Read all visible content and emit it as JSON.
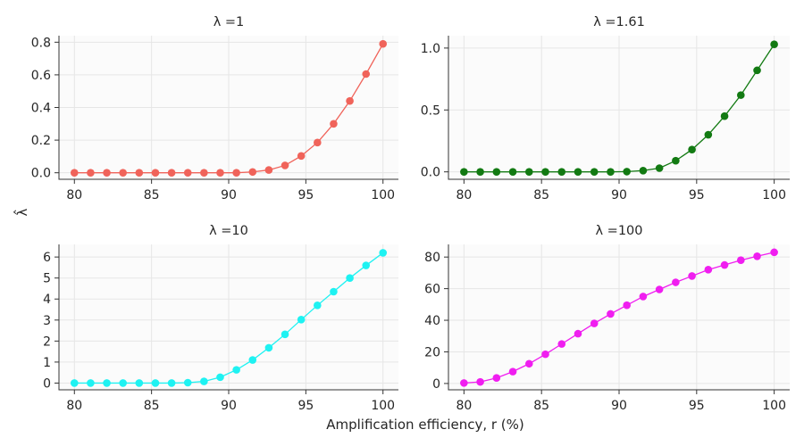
{
  "figure": {
    "xlabel": "Amplification efficiency, r (%)",
    "ylabel": "λ̂"
  },
  "chart_data": [
    {
      "type": "line",
      "title": "λ =1",
      "color": "#f0635a",
      "xlim": [
        79,
        101
      ],
      "ylim": [
        -0.04,
        0.84
      ],
      "xticks": [
        80,
        85,
        90,
        95,
        100
      ],
      "yticks": [
        0.0,
        0.2,
        0.4,
        0.6,
        0.8
      ],
      "ytick_labels": [
        "0.0",
        "0.2",
        "0.4",
        "0.6",
        "0.8"
      ],
      "x": [
        80,
        81.05,
        82.1,
        83.15,
        84.2,
        85.25,
        86.3,
        87.35,
        88.4,
        89.45,
        90.5,
        91.55,
        92.6,
        93.65,
        94.7,
        95.75,
        96.8,
        97.85,
        98.9,
        100
      ],
      "y": [
        0.0,
        0.0,
        0.0,
        0.0,
        0.0,
        0.0,
        0.0,
        0.0,
        0.0,
        0.0,
        0.0,
        0.005,
        0.017,
        0.045,
        0.103,
        0.185,
        0.3,
        0.44,
        0.605,
        0.79
      ]
    },
    {
      "type": "line",
      "title": "λ =1.61",
      "color": "#127a12",
      "xlim": [
        79,
        101
      ],
      "ylim": [
        -0.06,
        1.1
      ],
      "xticks": [
        80,
        85,
        90,
        95,
        100
      ],
      "yticks": [
        0.0,
        0.5,
        1.0
      ],
      "ytick_labels": [
        "0.0",
        "0.5",
        "1.0"
      ],
      "x": [
        80,
        81.05,
        82.1,
        83.15,
        84.2,
        85.25,
        86.3,
        87.35,
        88.4,
        89.45,
        90.5,
        91.55,
        92.6,
        93.65,
        94.7,
        95.75,
        96.8,
        97.85,
        98.9,
        100
      ],
      "y": [
        0.0,
        0.0,
        0.0,
        0.0,
        0.0,
        0.0,
        0.0,
        0.0,
        0.0,
        0.0,
        0.002,
        0.01,
        0.03,
        0.09,
        0.18,
        0.3,
        0.45,
        0.62,
        0.82,
        1.03
      ]
    },
    {
      "type": "line",
      "title": "λ =10",
      "color": "#1ef2f2",
      "xlim": [
        79,
        101
      ],
      "ylim": [
        -0.32,
        6.6
      ],
      "xticks": [
        80,
        85,
        90,
        95,
        100
      ],
      "yticks": [
        0,
        1,
        2,
        3,
        4,
        5,
        6
      ],
      "ytick_labels": [
        "0",
        "1",
        "2",
        "3",
        "4",
        "5",
        "6"
      ],
      "x": [
        80,
        81.05,
        82.1,
        83.15,
        84.2,
        85.25,
        86.3,
        87.35,
        88.4,
        89.45,
        90.5,
        91.55,
        92.6,
        93.65,
        94.7,
        95.75,
        96.8,
        97.85,
        98.9,
        100
      ],
      "y": [
        0.0,
        0.0,
        0.0,
        0.0,
        0.0,
        0.0,
        0.0,
        0.02,
        0.08,
        0.28,
        0.63,
        1.1,
        1.68,
        2.32,
        3.02,
        3.7,
        4.35,
        5.0,
        5.6,
        6.2
      ]
    },
    {
      "type": "line",
      "title": "λ =100",
      "color": "#f01ef0",
      "xlim": [
        79,
        101
      ],
      "ylim": [
        -4,
        88
      ],
      "xticks": [
        80,
        85,
        90,
        95,
        100
      ],
      "yticks": [
        0,
        20,
        40,
        60,
        80
      ],
      "ytick_labels": [
        "0",
        "20",
        "40",
        "60",
        "80"
      ],
      "x": [
        80,
        81.05,
        82.1,
        83.15,
        84.2,
        85.25,
        86.3,
        87.35,
        88.4,
        89.45,
        90.5,
        91.55,
        92.6,
        93.65,
        94.7,
        95.75,
        96.8,
        97.85,
        98.9,
        100
      ],
      "y": [
        0.3,
        1.0,
        3.5,
        7.5,
        12.5,
        18.5,
        25.0,
        31.5,
        38.0,
        44.0,
        49.5,
        55.0,
        59.5,
        64.0,
        68.0,
        72.0,
        75.0,
        78.0,
        80.5,
        83.0
      ]
    }
  ]
}
